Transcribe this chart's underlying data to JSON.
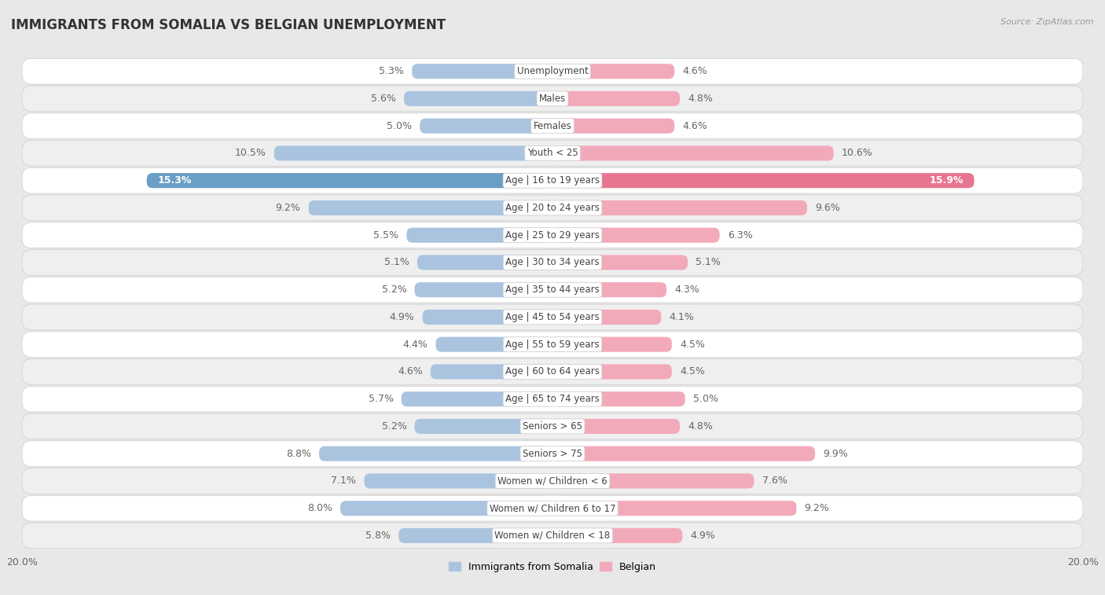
{
  "title": "IMMIGRANTS FROM SOMALIA VS BELGIAN UNEMPLOYMENT",
  "source": "Source: ZipAtlas.com",
  "categories": [
    "Unemployment",
    "Males",
    "Females",
    "Youth < 25",
    "Age | 16 to 19 years",
    "Age | 20 to 24 years",
    "Age | 25 to 29 years",
    "Age | 30 to 34 years",
    "Age | 35 to 44 years",
    "Age | 45 to 54 years",
    "Age | 55 to 59 years",
    "Age | 60 to 64 years",
    "Age | 65 to 74 years",
    "Seniors > 65",
    "Seniors > 75",
    "Women w/ Children < 6",
    "Women w/ Children 6 to 17",
    "Women w/ Children < 18"
  ],
  "somalia_values": [
    5.3,
    5.6,
    5.0,
    10.5,
    15.3,
    9.2,
    5.5,
    5.1,
    5.2,
    4.9,
    4.4,
    4.6,
    5.7,
    5.2,
    8.8,
    7.1,
    8.0,
    5.8
  ],
  "belgian_values": [
    4.6,
    4.8,
    4.6,
    10.6,
    15.9,
    9.6,
    6.3,
    5.1,
    4.3,
    4.1,
    4.5,
    4.5,
    5.0,
    4.8,
    9.9,
    7.6,
    9.2,
    4.9
  ],
  "somalia_color_light": "#aac4e0",
  "somalia_color_dark": "#6a9ec5",
  "belgian_color_light": "#f2aaba",
  "belgian_color_dark": "#e8758f",
  "row_bg_light": "#f5f5f5",
  "row_bg_dark": "#e8e8e8",
  "fig_bg": "#e8e8e8",
  "max_val": 20.0,
  "label_fontsize": 9,
  "title_fontsize": 12,
  "source_fontsize": 8,
  "axis_fontsize": 9,
  "legend_somalia": "Immigrants from Somalia",
  "legend_belgian": "Belgian",
  "high_threshold": 12.0
}
